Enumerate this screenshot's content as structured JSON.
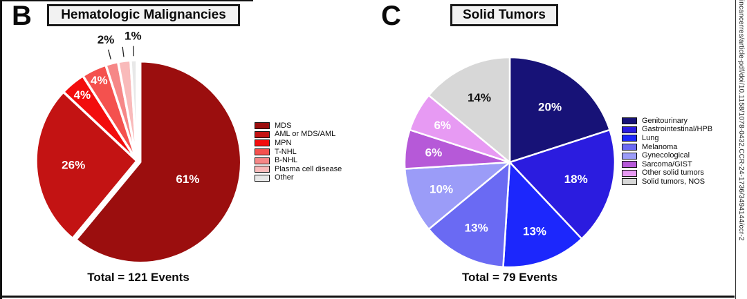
{
  "watermark": "incancerres/article-pdf/doi/10.1158/1078-0432.CCR-24-1736/3494144/ccr-2",
  "chart_data": [
    {
      "type": "pie",
      "panel": "B",
      "title": "Hematologic Malignancies",
      "total_label": "Total = 121 Events",
      "legend_position": "right",
      "slices": [
        {
          "name": "MDS",
          "pct": 61,
          "pct_label": "61%",
          "color": "#9B0E0E",
          "label_color": "#ffffff",
          "placement": "inside",
          "label_r": 0.5,
          "offset": 5
        },
        {
          "name": "AML or MDS/AML",
          "pct": 26,
          "pct_label": "26%",
          "color": "#C31313",
          "label_color": "#ffffff",
          "placement": "inside",
          "label_r": 0.63,
          "offset": 0
        },
        {
          "name": "MPN",
          "pct": 4,
          "pct_label": "4%",
          "color": "#F20D0D",
          "label_color": "#ffffff",
          "placement": "inside",
          "label_r": 0.85,
          "offset": 0
        },
        {
          "name": "T-NHL",
          "pct": 4,
          "pct_label": "4%",
          "color": "#F4514E",
          "label_color": "#ffffff",
          "placement": "inside",
          "label_r": 0.88,
          "offset": 0
        },
        {
          "name": "B-NHL",
          "pct": 2,
          "pct_label": "2%",
          "color": "#F68787",
          "label_color": "#111111",
          "placement": "outside",
          "label_r": 1.24,
          "offset": 0
        },
        {
          "name": "Plasma cell disease",
          "pct": 2,
          "pct_label": "",
          "color": "#F9BABA",
          "label_color": "#111111",
          "placement": "outside",
          "label_r": 1.24,
          "offset": 0
        },
        {
          "name": "Other",
          "pct": 1,
          "pct_label": "1%",
          "color": "#E8E8E8",
          "label_color": "#111111",
          "placement": "outside",
          "label_r": 1.24,
          "offset": 0
        }
      ]
    },
    {
      "type": "pie",
      "panel": "C",
      "title": "Solid Tumors",
      "total_label": "Total = 79 Events",
      "legend_position": "right",
      "slices": [
        {
          "name": "Genitourinary",
          "pct": 20,
          "pct_label": "20%",
          "color": "#171277",
          "label_color": "#ffffff",
          "placement": "inside",
          "label_r": 0.65,
          "offset": 0
        },
        {
          "name": "Gastrointestinal/HPB",
          "pct": 18,
          "pct_label": "18%",
          "color": "#2B1CDF",
          "label_color": "#ffffff",
          "placement": "inside",
          "label_r": 0.65,
          "offset": 0
        },
        {
          "name": "Lung",
          "pct": 13,
          "pct_label": "13%",
          "color": "#1C27FC",
          "label_color": "#ffffff",
          "placement": "inside",
          "label_r": 0.7,
          "offset": 0
        },
        {
          "name": "Melanoma",
          "pct": 13,
          "pct_label": "13%",
          "color": "#6A6AF3",
          "label_color": "#ffffff",
          "placement": "inside",
          "label_r": 0.7,
          "offset": 0
        },
        {
          "name": "Gynecological",
          "pct": 10,
          "pct_label": "10%",
          "color": "#9B9CF8",
          "label_color": "#ffffff",
          "placement": "inside",
          "label_r": 0.7,
          "offset": 0
        },
        {
          "name": "Sarcoma/GIST",
          "pct": 6,
          "pct_label": "6%",
          "color": "#B659D8",
          "label_color": "#ffffff",
          "placement": "inside",
          "label_r": 0.73,
          "offset": 0
        },
        {
          "name": "Other solid tumors",
          "pct": 6,
          "pct_label": "6%",
          "color": "#E79AF3",
          "label_color": "#ffffff",
          "placement": "inside",
          "label_r": 0.73,
          "offset": 0
        },
        {
          "name": "Solid tumors, NOS",
          "pct": 14,
          "pct_label": "14%",
          "color": "#D7D7D7",
          "label_color": "#111111",
          "placement": "inside",
          "label_r": 0.68,
          "offset": 0
        }
      ]
    }
  ]
}
